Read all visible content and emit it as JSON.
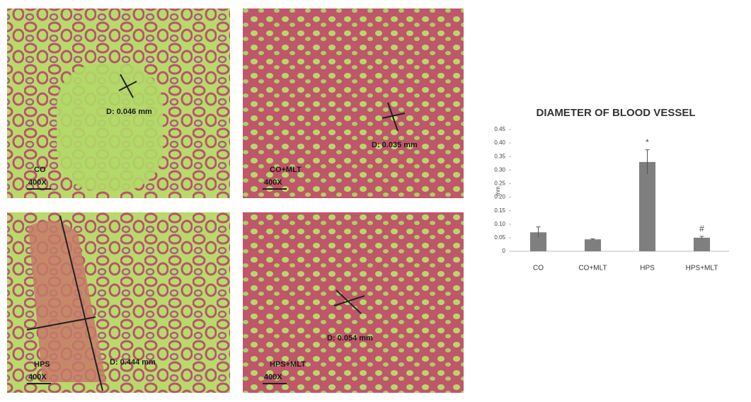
{
  "panels": [
    {
      "group": "CO",
      "measurement": "D: 0.046 mm",
      "scale": "400X"
    },
    {
      "group": "CO+MLT",
      "measurement": "D: 0.035 mm",
      "scale": "400X"
    },
    {
      "group": "HPS",
      "measurement": "D: 0.444 mm",
      "scale": "400X"
    },
    {
      "group": "HPS+MLT",
      "measurement": "D: 0.054 mm",
      "scale": "400X"
    }
  ],
  "chart_data": {
    "type": "bar",
    "title": "DIAMETER OF BLOOD VESSEL",
    "y_label": "mm",
    "categories": [
      "CO",
      "CO+MLT",
      "HPS",
      "HPS+MLT"
    ],
    "values": [
      0.07,
      0.044,
      0.33,
      0.05
    ],
    "errors": [
      0.02,
      0.002,
      0.045,
      0.005
    ],
    "annotations": [
      null,
      null,
      "*",
      "#"
    ],
    "color": "#7f7f7f",
    "ylim": [
      0,
      0.45
    ],
    "yticks": [
      0,
      0.05,
      {
        "value": 0.1,
        "label": "0.10"
      },
      0.15,
      {
        "value": 0.2,
        "label": "0.20"
      },
      0.25,
      {
        "value": 0.3,
        "label": "0.30"
      },
      0.35,
      {
        "value": 0.4,
        "label": "0.40"
      },
      0.45
    ]
  }
}
